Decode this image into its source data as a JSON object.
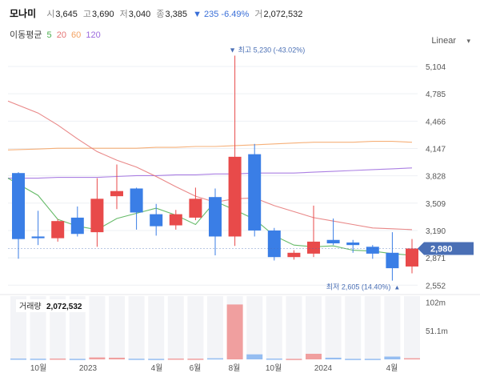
{
  "header": {
    "name": "모나미",
    "open_label": "시",
    "open": "3,645",
    "high_label": "고",
    "high": "3,690",
    "low_label": "저",
    "low": "3,040",
    "close_label": "종",
    "close": "3,385",
    "change": "▼ 235 -6.49%",
    "volume_label": "거",
    "volume": "2,072,532"
  },
  "ma_legend": {
    "title": "이동평균",
    "items": [
      {
        "label": "5",
        "color": "#4caf50"
      },
      {
        "label": "20",
        "color": "#e57373"
      },
      {
        "label": "60",
        "color": "#f4a261"
      },
      {
        "label": "120",
        "color": "#9c6ade"
      }
    ]
  },
  "scale_label": "Linear",
  "colors": {
    "up": "#e84a4a",
    "down": "#3a7ee6",
    "current": "#4a6fb5"
  },
  "chart_data": {
    "type": "candlestick",
    "ylim": [
      2480,
      5300
    ],
    "y_ticks": [
      "5,104",
      "4,785",
      "4,466",
      "4,147",
      "3,828",
      "3,509",
      "3,190",
      "2,871",
      "2,552"
    ],
    "x_tick_labels": [
      "10월",
      "2023",
      "4월",
      "6월",
      "8월",
      "10월",
      "2024",
      "4월"
    ],
    "candles": [
      {
        "o": 3860,
        "h": 3870,
        "l": 2860,
        "c": 3090
      },
      {
        "o": 3120,
        "h": 3420,
        "l": 3020,
        "c": 3100
      },
      {
        "o": 3100,
        "h": 3320,
        "l": 3060,
        "c": 3300
      },
      {
        "o": 3340,
        "h": 3470,
        "l": 3120,
        "c": 3150
      },
      {
        "o": 3170,
        "h": 3800,
        "l": 3000,
        "c": 3560
      },
      {
        "o": 3590,
        "h": 3960,
        "l": 3440,
        "c": 3650
      },
      {
        "o": 3680,
        "h": 3690,
        "l": 3200,
        "c": 3400
      },
      {
        "o": 3380,
        "h": 3500,
        "l": 3130,
        "c": 3240
      },
      {
        "o": 3250,
        "h": 3430,
        "l": 3200,
        "c": 3380
      },
      {
        "o": 3340,
        "h": 3690,
        "l": 3310,
        "c": 3560
      },
      {
        "o": 3580,
        "h": 3680,
        "l": 2900,
        "c": 3120
      },
      {
        "o": 3120,
        "h": 5230,
        "l": 3010,
        "c": 4050
      },
      {
        "o": 4080,
        "h": 4200,
        "l": 3120,
        "c": 3190
      },
      {
        "o": 3190,
        "h": 3220,
        "l": 2840,
        "c": 2880
      },
      {
        "o": 2880,
        "h": 2960,
        "l": 2850,
        "c": 2930
      },
      {
        "o": 2920,
        "h": 3480,
        "l": 2880,
        "c": 3060
      },
      {
        "o": 3080,
        "h": 3330,
        "l": 3020,
        "c": 3040
      },
      {
        "o": 3050,
        "h": 3080,
        "l": 2930,
        "c": 3020
      },
      {
        "o": 3000,
        "h": 3020,
        "l": 2860,
        "c": 2920
      },
      {
        "o": 2930,
        "h": 3170,
        "l": 2605,
        "c": 2750
      },
      {
        "o": 2770,
        "h": 3090,
        "l": 2690,
        "c": 2980
      }
    ],
    "ma5": [
      3800,
      3600,
      3320,
      3240,
      3200,
      3330,
      3390,
      3450,
      3370,
      3260,
      3530,
      3430,
      3320,
      3130,
      3020,
      3000,
      3010,
      2960,
      2950,
      2920,
      2900
    ],
    "ma20": [
      4700,
      4560,
      4420,
      4260,
      4110,
      4010,
      3930,
      3820,
      3700,
      3590,
      3520,
      3560,
      3570,
      3480,
      3410,
      3340,
      3300,
      3260,
      3220,
      3210,
      3200
    ],
    "ma60": [
      4130,
      4140,
      4150,
      4150,
      4150,
      4150,
      4150,
      4160,
      4160,
      4170,
      4170,
      4180,
      4190,
      4200,
      4210,
      4220,
      4220,
      4220,
      4230,
      4230,
      4220
    ],
    "ma120": [
      3800,
      3800,
      3810,
      3810,
      3810,
      3820,
      3830,
      3830,
      3840,
      3840,
      3850,
      3850,
      3860,
      3860,
      3860,
      3870,
      3880,
      3890,
      3900,
      3910,
      3920
    ],
    "high_annotation": "최고 5,230 (-43.02%)",
    "low_annotation": "최저 2,605 (14.40%)",
    "current_price": "2,980",
    "volume_label": "거래량",
    "volume_value": "2,072,532",
    "volume_ylim": [
      0,
      110
    ],
    "volume_ticks": [
      "102m",
      "51.1m"
    ],
    "volumes": [
      1.5,
      1.2,
      1.5,
      1.0,
      3.5,
      3.0,
      1.2,
      1.0,
      1.5,
      1.3,
      2.0,
      98,
      9,
      1.5,
      1.0,
      10,
      3.0,
      1.0,
      1.0,
      5,
      2.1
    ]
  }
}
